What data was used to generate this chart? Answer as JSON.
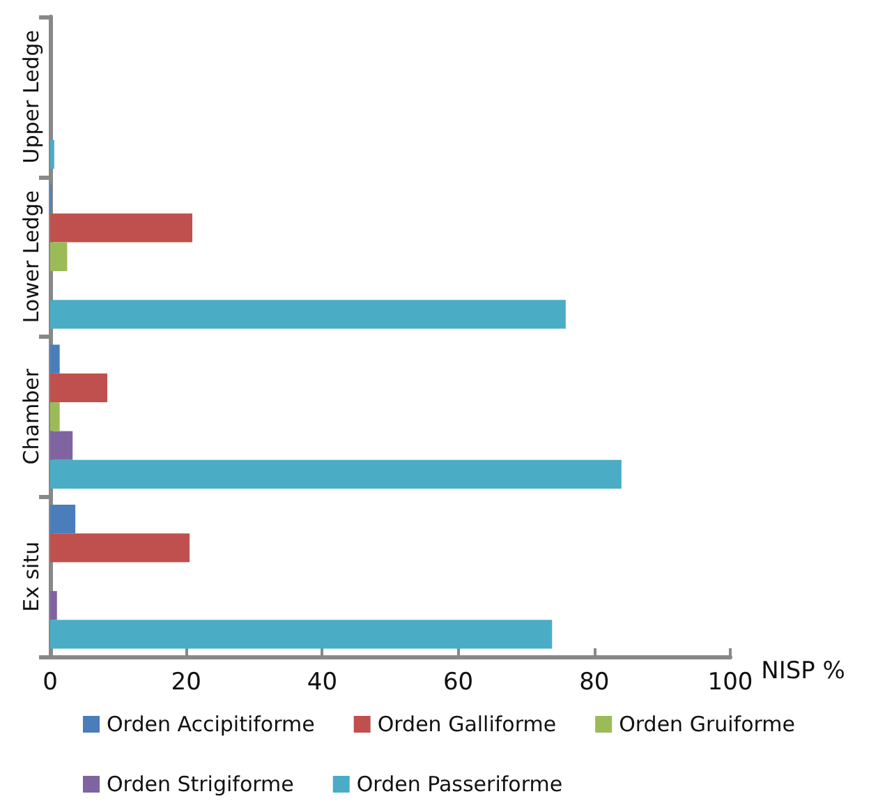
{
  "chart_data": {
    "type": "bar",
    "orientation": "horizontal",
    "categories": [
      "Upper Ledge",
      "Lower Ledge",
      "Chamber",
      "Ex situ"
    ],
    "xlabel": "NISP %",
    "xlim": [
      0,
      100
    ],
    "xticks": [
      0,
      20,
      40,
      60,
      80,
      100
    ],
    "grid": false,
    "legend": "bottom",
    "series": [
      {
        "name": "Orden Accipitiforme",
        "color": "#4a7ebb",
        "values": [
          0,
          0.2,
          1.4,
          3.7
        ]
      },
      {
        "name": "Orden Galliforme",
        "color": "#c0504d",
        "values": [
          0,
          20.9,
          8.4,
          20.5
        ]
      },
      {
        "name": "Orden Gruiforme",
        "color": "#9bbb59",
        "values": [
          0,
          2.5,
          1.4,
          0
        ]
      },
      {
        "name": "Orden Strigiforme",
        "color": "#8064a2",
        "values": [
          0,
          0,
          3.3,
          1.0
        ]
      },
      {
        "name": "Orden Passeriforme",
        "color": "#4bacc6",
        "values": [
          0.6,
          75.8,
          84,
          73.8
        ]
      }
    ]
  }
}
